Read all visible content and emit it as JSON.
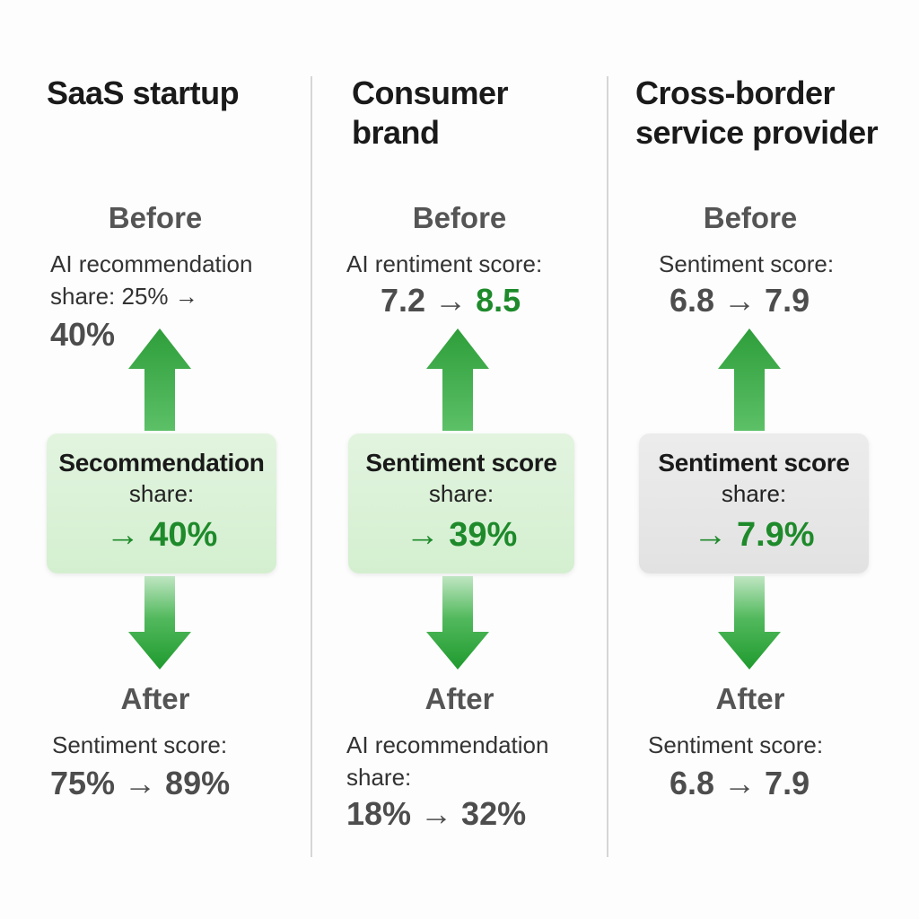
{
  "columns": [
    {
      "title": "SaaS startup",
      "before": {
        "label": "Before",
        "metric_label": "AI recommendation share: 25% →",
        "metric_value": "40%",
        "metric_value_highlight": ""
      },
      "card": {
        "title": "Secommendation",
        "subtitle": "share:",
        "value": "→ 40%",
        "style": "green"
      },
      "after": {
        "label": "After",
        "metric_label": "Sentiment score:",
        "metric_value": "75% → 89%"
      }
    },
    {
      "title": "Consumer brand",
      "before": {
        "label": "Before",
        "metric_label": "AI rentiment score:",
        "metric_value": "7.2 → ",
        "metric_value_highlight": "8.5"
      },
      "card": {
        "title": "Sentiment score",
        "subtitle": "share:",
        "value": "→ 39%",
        "style": "green"
      },
      "after": {
        "label": "After",
        "metric_label": "AI recommendation share:",
        "metric_value": "18% → 32%"
      }
    },
    {
      "title": "Cross-border service provider",
      "before": {
        "label": "Before",
        "metric_label": "Sentiment score:",
        "metric_value": "6.8 → 7.9",
        "metric_value_highlight": ""
      },
      "card": {
        "title": "Sentiment score",
        "subtitle": "share:",
        "value": "→ 7.9%",
        "style": "gray"
      },
      "after": {
        "label": "After",
        "metric_label": "Sentiment score:",
        "metric_value": "6.8 → 7.9"
      }
    }
  ],
  "colors": {
    "accent_green": "#1e8a2b",
    "arrow_green": "#2fa43c",
    "card_green": "#d9f1d5",
    "card_gray": "#e6e6e6",
    "divider": "#d6d6d6"
  },
  "icons": [
    "arrow-up-icon",
    "arrow-down-icon"
  ]
}
